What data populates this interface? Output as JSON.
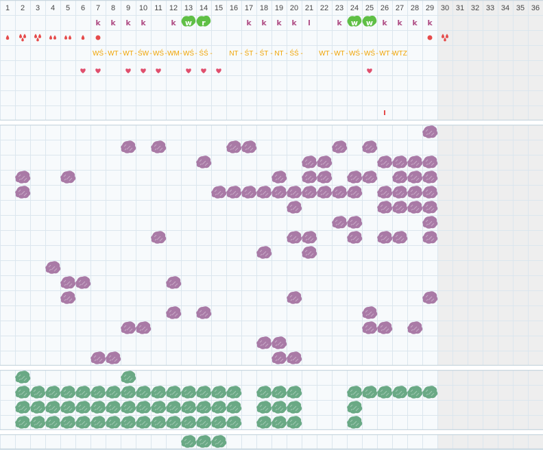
{
  "columns": [
    "1",
    "2",
    "3",
    "4",
    "5",
    "6",
    "7",
    "8",
    "9",
    "10",
    "11",
    "12",
    "13",
    "14",
    "15",
    "16",
    "17",
    "18",
    "19",
    "20",
    "21",
    "22",
    "23",
    "24",
    "25",
    "26",
    "27",
    "28",
    "29",
    "30",
    "31",
    "32",
    "33",
    "34",
    "35",
    "36"
  ],
  "active_days": 29,
  "colors": {
    "grid_line": "#dbe6ee",
    "cell_bg": "#f7fafc",
    "inactive_bg": "#eeeeee",
    "section_border": "#c9d7e0",
    "letter": "#b04f86",
    "green_badge": "#5fbf45",
    "red": "#e54b4b",
    "heart": "#e0506e",
    "orange": "#f0a300",
    "purple_blob": "#a97aa6",
    "green_blob": "#6aa985"
  },
  "rows": {
    "letters": [
      {
        "col": 7,
        "text": "k"
      },
      {
        "col": 8,
        "text": "k"
      },
      {
        "col": 9,
        "text": "k"
      },
      {
        "col": 10,
        "text": "k"
      },
      {
        "col": 12,
        "text": "k"
      },
      {
        "col": 13,
        "text": "w",
        "badge": true
      },
      {
        "col": 14,
        "text": "r",
        "badge": true
      },
      {
        "col": 17,
        "text": "k"
      },
      {
        "col": 18,
        "text": "k"
      },
      {
        "col": 19,
        "text": "k"
      },
      {
        "col": 20,
        "text": "k"
      },
      {
        "col": 21,
        "text": "l"
      },
      {
        "col": 23,
        "text": "k"
      },
      {
        "col": 24,
        "text": "w",
        "badge": true
      },
      {
        "col": 25,
        "text": "w",
        "badge": true
      },
      {
        "col": 26,
        "text": "k"
      },
      {
        "col": 27,
        "text": "k"
      },
      {
        "col": 28,
        "text": "k"
      },
      {
        "col": 29,
        "text": "k"
      }
    ],
    "drops": [
      {
        "col": 1,
        "type": "drop1"
      },
      {
        "col": 2,
        "type": "drop3"
      },
      {
        "col": 3,
        "type": "drop3"
      },
      {
        "col": 4,
        "type": "drop2"
      },
      {
        "col": 5,
        "type": "drop2"
      },
      {
        "col": 6,
        "type": "drop1"
      },
      {
        "col": 7,
        "type": "dot"
      },
      {
        "col": 29,
        "type": "dot"
      },
      {
        "col": 30,
        "type": "drop3"
      }
    ],
    "codes": [
      {
        "col": 7,
        "text": "WŚ"
      },
      {
        "col": 8,
        "text": "WT"
      },
      {
        "col": 9,
        "text": "WT"
      },
      {
        "col": 10,
        "text": "ŚW"
      },
      {
        "col": 11,
        "text": "WŚ"
      },
      {
        "col": 12,
        "text": "WM"
      },
      {
        "col": 13,
        "text": "WŚ"
      },
      {
        "col": 14,
        "text": "ŚŚ"
      },
      {
        "col": 16,
        "text": "NT"
      },
      {
        "col": 17,
        "text": "ŚT"
      },
      {
        "col": 18,
        "text": "ŚT"
      },
      {
        "col": 19,
        "text": "NT"
      },
      {
        "col": 20,
        "text": "ŚŚ"
      },
      {
        "col": 22,
        "text": "WT"
      },
      {
        "col": 23,
        "text": "WT"
      },
      {
        "col": 24,
        "text": "WŚ"
      },
      {
        "col": 25,
        "text": "WŚ"
      },
      {
        "col": 26,
        "text": "WT"
      },
      {
        "col": 27,
        "text": "WTZ"
      }
    ],
    "hearts": [
      6,
      7,
      9,
      10,
      11,
      13,
      14,
      15,
      25
    ],
    "marks": [
      {
        "col": 26,
        "text": "I"
      }
    ]
  },
  "purple_section": {
    "rows": [
      [
        29
      ],
      [
        9,
        11,
        16,
        17,
        23,
        25
      ],
      [
        14,
        21,
        22,
        26,
        27,
        28,
        29
      ],
      [
        2,
        5,
        19,
        21,
        22,
        24,
        25,
        27,
        28,
        29
      ],
      [
        2,
        15,
        16,
        17,
        18,
        19,
        20,
        21,
        22,
        23,
        24,
        26,
        27,
        28,
        29
      ],
      [
        20,
        26,
        27,
        28,
        29
      ],
      [
        23,
        24,
        29
      ],
      [
        11,
        20,
        21,
        24,
        26,
        27,
        29
      ],
      [
        18,
        21
      ],
      [
        4
      ],
      [
        5,
        6,
        12
      ],
      [
        5,
        20,
        29
      ],
      [
        12,
        14,
        25
      ],
      [
        9,
        10,
        25,
        26,
        28
      ],
      [
        18,
        19
      ],
      [
        7,
        8,
        19,
        20
      ]
    ]
  },
  "green_section": {
    "rows": [
      [
        2,
        9
      ],
      [
        2,
        3,
        4,
        5,
        6,
        7,
        8,
        9,
        10,
        11,
        12,
        13,
        14,
        15,
        16,
        18,
        19,
        20,
        24,
        25,
        26,
        27,
        28,
        29
      ],
      [
        2,
        3,
        4,
        5,
        6,
        7,
        8,
        9,
        10,
        11,
        12,
        13,
        14,
        15,
        16,
        18,
        19,
        20,
        24
      ],
      [
        2,
        3,
        4,
        5,
        6,
        7,
        8,
        9,
        10,
        11,
        12,
        13,
        14,
        15,
        16,
        18,
        19,
        20,
        24
      ]
    ]
  },
  "bottom_section": {
    "rows": [
      [
        13,
        14,
        15
      ]
    ]
  }
}
